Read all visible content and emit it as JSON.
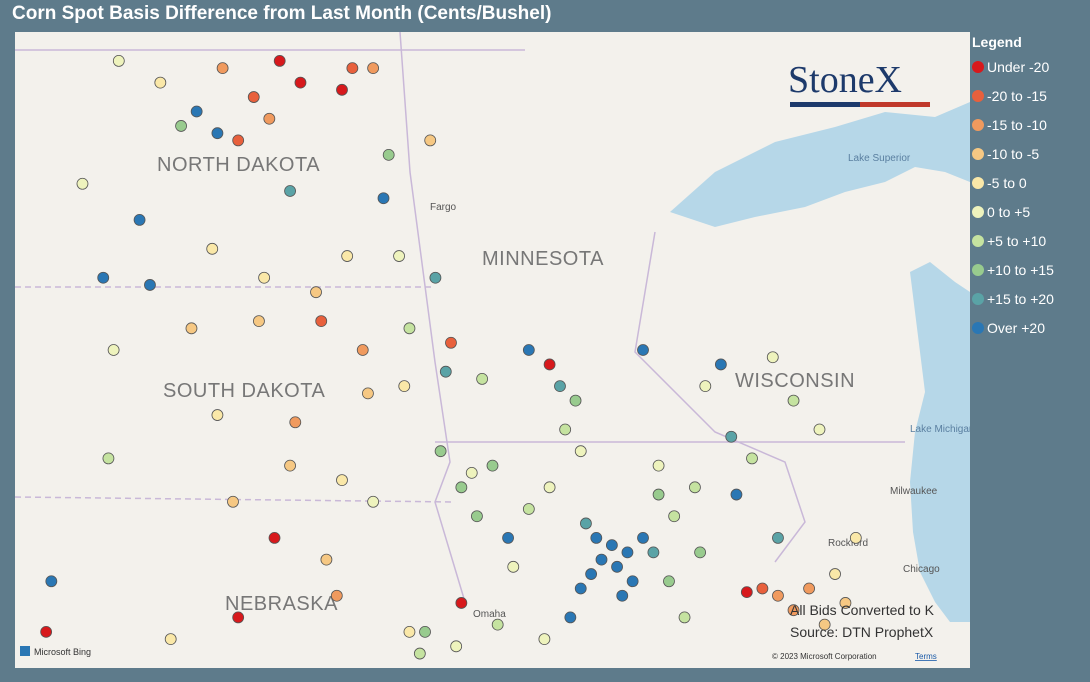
{
  "title": "Corn Spot Basis Difference from Last Month (Cents/Bushel)",
  "legend": {
    "title": "Legend",
    "items": [
      {
        "label": "Under -20",
        "color": "#d7191c"
      },
      {
        "label": "-20 to -15",
        "color": "#e8603c"
      },
      {
        "label": "-15 to -10",
        "color": "#f09a5e"
      },
      {
        "label": "-10 to -5",
        "color": "#f6c883"
      },
      {
        "label": "-5 to 0",
        "color": "#fae8a8"
      },
      {
        "label": "0 to +5",
        "color": "#eef3bd"
      },
      {
        "label": "+5 to +10",
        "color": "#c5e3a0"
      },
      {
        "label": "+10 to +15",
        "color": "#98cb8e"
      },
      {
        "label": "+15 to +20",
        "color": "#5aa3a6"
      },
      {
        "label": "Over +20",
        "color": "#2a77b4"
      }
    ]
  },
  "logo": "StoneX",
  "map_labels": {
    "states": [
      "NORTH DAKOTA",
      "MINNESOTA",
      "SOUTH DAKOTA",
      "WISCONSIN",
      "NEBRASKA"
    ],
    "cities": [
      "Fargo",
      "Rockford",
      "Milwaukee",
      "Chicago",
      "Omaha"
    ],
    "lakes": [
      "Lake Superior",
      "Lake Michigan"
    ]
  },
  "notes": [
    "All Bids Converted to K",
    "Source: DTN ProphetX"
  ],
  "attribution": {
    "provider": "Microsoft Bing",
    "copyright": "© 2023 Microsoft Corporation",
    "terms": "Terms"
  },
  "extent": {
    "lon": [
      -104.8,
      -86.4
    ],
    "lat": [
      40.5,
      49.3
    ]
  },
  "points": [
    {
      "lon": -99.7,
      "lat": 48.9,
      "band": 0
    },
    {
      "lon": -99.3,
      "lat": 48.6,
      "band": 0
    },
    {
      "lon": -98.5,
      "lat": 48.5,
      "band": 0
    },
    {
      "lon": -96.2,
      "lat": 41.4,
      "band": 0
    },
    {
      "lon": -90.7,
      "lat": 41.55,
      "band": 0
    },
    {
      "lon": -100.5,
      "lat": 41.2,
      "band": 0
    },
    {
      "lon": -104.2,
      "lat": 41.0,
      "band": 0
    },
    {
      "lon": -99.8,
      "lat": 42.3,
      "band": 0
    },
    {
      "lon": -94.5,
      "lat": 44.7,
      "band": 0
    },
    {
      "lon": -101.3,
      "lat": 48.2,
      "band": 9
    },
    {
      "lon": -100.9,
      "lat": 47.9,
      "band": 9
    },
    {
      "lon": -97.7,
      "lat": 47.0,
      "band": 9
    },
    {
      "lon": -102.4,
      "lat": 46.7,
      "band": 9
    },
    {
      "lon": -103.1,
      "lat": 45.9,
      "band": 9
    },
    {
      "lon": -102.2,
      "lat": 45.8,
      "band": 9
    },
    {
      "lon": -94.9,
      "lat": 44.9,
      "band": 9
    },
    {
      "lon": -92.7,
      "lat": 44.9,
      "band": 9
    },
    {
      "lon": -91.2,
      "lat": 44.7,
      "band": 9
    },
    {
      "lon": -90.9,
      "lat": 42.9,
      "band": 9
    },
    {
      "lon": -104.1,
      "lat": 41.7,
      "band": 9
    },
    {
      "lon": -94.1,
      "lat": 41.2,
      "band": 9
    },
    {
      "lon": -95.3,
      "lat": 42.3,
      "band": 9
    },
    {
      "lon": -93.5,
      "lat": 42.0,
      "band": 9
    },
    {
      "lon": -93.2,
      "lat": 41.9,
      "band": 9
    },
    {
      "lon": -93.0,
      "lat": 42.1,
      "band": 9
    },
    {
      "lon": -93.7,
      "lat": 41.8,
      "band": 9
    },
    {
      "lon": -92.9,
      "lat": 41.7,
      "band": 9
    },
    {
      "lon": -93.3,
      "lat": 42.2,
      "band": 9
    },
    {
      "lon": -93.9,
      "lat": 41.6,
      "band": 9
    },
    {
      "lon": -92.7,
      "lat": 42.3,
      "band": 9
    },
    {
      "lon": -93.1,
      "lat": 41.5,
      "band": 9
    },
    {
      "lon": -93.6,
      "lat": 42.3,
      "band": 9
    },
    {
      "lon": -100.2,
      "lat": 48.4,
      "band": 1
    },
    {
      "lon": -98.3,
      "lat": 48.8,
      "band": 1
    },
    {
      "lon": -100.5,
      "lat": 47.8,
      "band": 1
    },
    {
      "lon": -90.4,
      "lat": 41.6,
      "band": 1
    },
    {
      "lon": -98.9,
      "lat": 45.3,
      "band": 1
    },
    {
      "lon": -96.4,
      "lat": 45.0,
      "band": 1
    },
    {
      "lon": -100.8,
      "lat": 48.8,
      "band": 2
    },
    {
      "lon": -99.9,
      "lat": 48.1,
      "band": 2
    },
    {
      "lon": -97.9,
      "lat": 48.8,
      "band": 2
    },
    {
      "lon": -90.1,
      "lat": 41.5,
      "band": 2
    },
    {
      "lon": -89.8,
      "lat": 41.3,
      "band": 2
    },
    {
      "lon": -89.5,
      "lat": 41.6,
      "band": 2
    },
    {
      "lon": -98.1,
      "lat": 44.9,
      "band": 2
    },
    {
      "lon": -99.4,
      "lat": 43.9,
      "band": 2
    },
    {
      "lon": -98.6,
      "lat": 41.5,
      "band": 2
    },
    {
      "lon": -96.8,
      "lat": 47.8,
      "band": 3
    },
    {
      "lon": -99.0,
      "lat": 45.7,
      "band": 3
    },
    {
      "lon": -100.1,
      "lat": 45.3,
      "band": 3
    },
    {
      "lon": -101.4,
      "lat": 45.2,
      "band": 3
    },
    {
      "lon": -99.5,
      "lat": 43.3,
      "band": 3
    },
    {
      "lon": -98.0,
      "lat": 44.3,
      "band": 3
    },
    {
      "lon": -89.2,
      "lat": 41.1,
      "band": 3
    },
    {
      "lon": -88.8,
      "lat": 41.4,
      "band": 3
    },
    {
      "lon": -100.6,
      "lat": 42.8,
      "band": 3
    },
    {
      "lon": -98.8,
      "lat": 42.0,
      "band": 3
    },
    {
      "lon": -102.0,
      "lat": 48.6,
      "band": 4
    },
    {
      "lon": -101.0,
      "lat": 46.3,
      "band": 4
    },
    {
      "lon": -100.0,
      "lat": 45.9,
      "band": 4
    },
    {
      "lon": -98.4,
      "lat": 46.2,
      "band": 4
    },
    {
      "lon": -97.3,
      "lat": 44.4,
      "band": 4
    },
    {
      "lon": -98.5,
      "lat": 43.1,
      "band": 4
    },
    {
      "lon": -100.9,
      "lat": 44.0,
      "band": 4
    },
    {
      "lon": -89.0,
      "lat": 41.8,
      "band": 4
    },
    {
      "lon": -88.6,
      "lat": 42.3,
      "band": 4
    },
    {
      "lon": -97.2,
      "lat": 41.0,
      "band": 4
    },
    {
      "lon": -101.8,
      "lat": 40.9,
      "band": 4
    },
    {
      "lon": -102.8,
      "lat": 48.9,
      "band": 5
    },
    {
      "lon": -103.5,
      "lat": 47.2,
      "band": 5
    },
    {
      "lon": -102.9,
      "lat": 44.9,
      "band": 5
    },
    {
      "lon": -97.4,
      "lat": 46.2,
      "band": 5
    },
    {
      "lon": -96.0,
      "lat": 43.2,
      "band": 5
    },
    {
      "lon": -94.5,
      "lat": 43.0,
      "band": 5
    },
    {
      "lon": -93.9,
      "lat": 43.5,
      "band": 5
    },
    {
      "lon": -95.2,
      "lat": 41.9,
      "band": 5
    },
    {
      "lon": -92.4,
      "lat": 43.3,
      "band": 5
    },
    {
      "lon": -91.5,
      "lat": 44.4,
      "band": 5
    },
    {
      "lon": -90.2,
      "lat": 44.8,
      "band": 5
    },
    {
      "lon": -89.3,
      "lat": 43.8,
      "band": 5
    },
    {
      "lon": -96.3,
      "lat": 40.8,
      "band": 5
    },
    {
      "lon": -94.6,
      "lat": 40.9,
      "band": 5
    },
    {
      "lon": -97.9,
      "lat": 42.8,
      "band": 5
    },
    {
      "lon": -103.0,
      "lat": 43.4,
      "band": 6
    },
    {
      "lon": -97.2,
      "lat": 45.2,
      "band": 6
    },
    {
      "lon": -95.8,
      "lat": 44.5,
      "band": 6
    },
    {
      "lon": -94.2,
      "lat": 43.8,
      "band": 6
    },
    {
      "lon": -92.1,
      "lat": 42.6,
      "band": 6
    },
    {
      "lon": -91.7,
      "lat": 43.0,
      "band": 6
    },
    {
      "lon": -90.6,
      "lat": 43.4,
      "band": 6
    },
    {
      "lon": -89.8,
      "lat": 44.2,
      "band": 6
    },
    {
      "lon": -94.9,
      "lat": 42.7,
      "band": 6
    },
    {
      "lon": -97.0,
      "lat": 40.7,
      "band": 6
    },
    {
      "lon": -91.9,
      "lat": 41.2,
      "band": 6
    },
    {
      "lon": -95.5,
      "lat": 41.1,
      "band": 6
    },
    {
      "lon": -101.6,
      "lat": 48.0,
      "band": 7
    },
    {
      "lon": -97.6,
      "lat": 47.6,
      "band": 7
    },
    {
      "lon": -96.6,
      "lat": 43.5,
      "band": 7
    },
    {
      "lon": -96.2,
      "lat": 43.0,
      "band": 7
    },
    {
      "lon": -95.9,
      "lat": 42.6,
      "band": 7
    },
    {
      "lon": -95.6,
      "lat": 43.3,
      "band": 7
    },
    {
      "lon": -92.4,
      "lat": 42.9,
      "band": 7
    },
    {
      "lon": -91.6,
      "lat": 42.1,
      "band": 7
    },
    {
      "lon": -94.0,
      "lat": 44.2,
      "band": 7
    },
    {
      "lon": -96.9,
      "lat": 41.0,
      "band": 7
    },
    {
      "lon": -92.2,
      "lat": 41.7,
      "band": 7
    },
    {
      "lon": -99.5,
      "lat": 47.1,
      "band": 8
    },
    {
      "lon": -96.7,
      "lat": 45.9,
      "band": 8
    },
    {
      "lon": -96.5,
      "lat": 44.6,
      "band": 8
    },
    {
      "lon": -94.3,
      "lat": 44.4,
      "band": 8
    },
    {
      "lon": -92.5,
      "lat": 42.1,
      "band": 8
    },
    {
      "lon": -93.8,
      "lat": 42.5,
      "band": 8
    },
    {
      "lon": -90.1,
      "lat": 42.3,
      "band": 8
    },
    {
      "lon": -91.0,
      "lat": 43.7,
      "band": 8
    }
  ]
}
